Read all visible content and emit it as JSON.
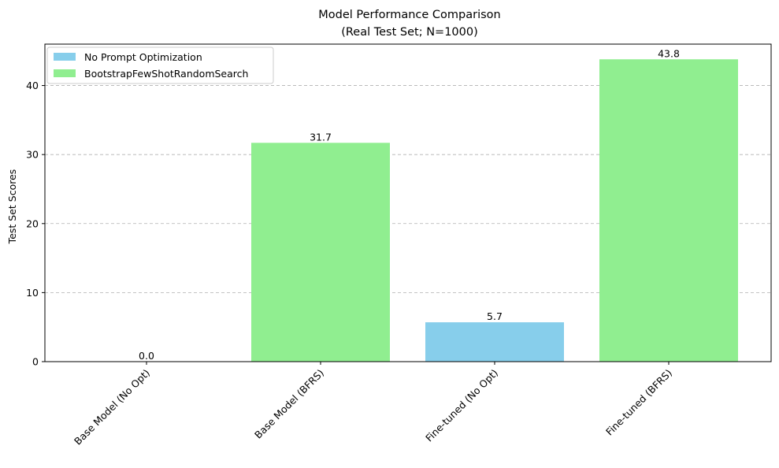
{
  "chart_data": {
    "type": "bar",
    "title": "Model Performance Comparison",
    "subtitle": "(Real Test Set; N=1000)",
    "xlabel": "",
    "ylabel": "Test Set Scores",
    "ylim": [
      0,
      46
    ],
    "yticks": [
      0,
      10,
      20,
      30,
      40
    ],
    "grid": "y-dashed",
    "legend_position": "top-left",
    "categories": [
      "Base Model (No Opt)",
      "Base Model (BFRS)",
      "Fine-tuned (No Opt)",
      "Fine-tuned (BFRS)"
    ],
    "values": [
      0.0,
      31.7,
      5.7,
      43.8
    ],
    "value_labels": [
      "0.0",
      "31.7",
      "5.7",
      "43.8"
    ],
    "bar_series": [
      0,
      1,
      0,
      1
    ],
    "series": [
      {
        "name": "No Prompt Optimization",
        "color": "#87ceeb"
      },
      {
        "name": "BootstrapFewShotRandomSearch",
        "color": "#90ee90"
      }
    ]
  }
}
